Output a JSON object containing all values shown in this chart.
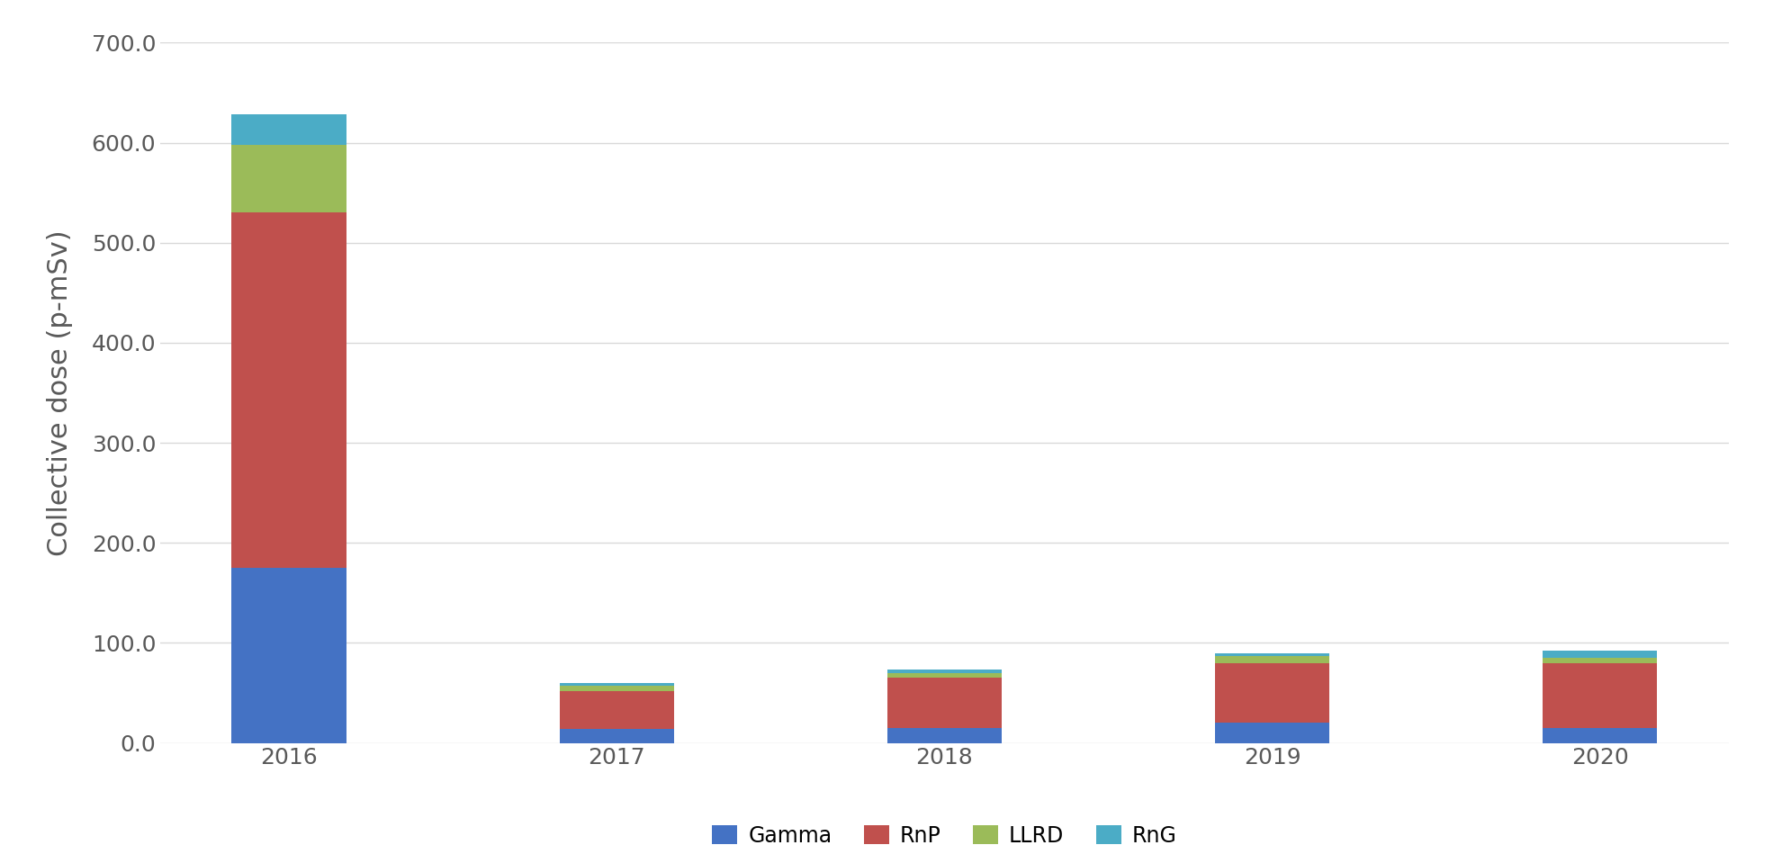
{
  "years": [
    "2016",
    "2017",
    "2018",
    "2019",
    "2020"
  ],
  "gamma": [
    175.0,
    14.0,
    15.0,
    20.0,
    15.0
  ],
  "rnp": [
    355.0,
    38.0,
    50.0,
    60.0,
    65.0
  ],
  "llrd": [
    68.0,
    5.0,
    5.0,
    7.0,
    5.0
  ],
  "rng": [
    30.0,
    3.0,
    3.0,
    3.0,
    7.0
  ],
  "colors": {
    "gamma": "#4472C4",
    "rnp": "#C0504D",
    "llrd": "#9BBB59",
    "rng": "#4BACC6"
  },
  "ylabel": "Collective dose (p-mSv)",
  "ylim": [
    0,
    700.0
  ],
  "yticks": [
    0.0,
    100.0,
    200.0,
    300.0,
    400.0,
    500.0,
    600.0,
    700.0
  ],
  "legend_labels": [
    "Gamma",
    "RnP",
    "LLRD",
    "RnG"
  ],
  "bar_width": 0.35,
  "background_color": "#FFFFFF",
  "grid_color": "#D9D9D9",
  "tick_label_color": "#595959",
  "tick_label_fontsize": 18,
  "ylabel_fontsize": 22,
  "legend_fontsize": 17
}
